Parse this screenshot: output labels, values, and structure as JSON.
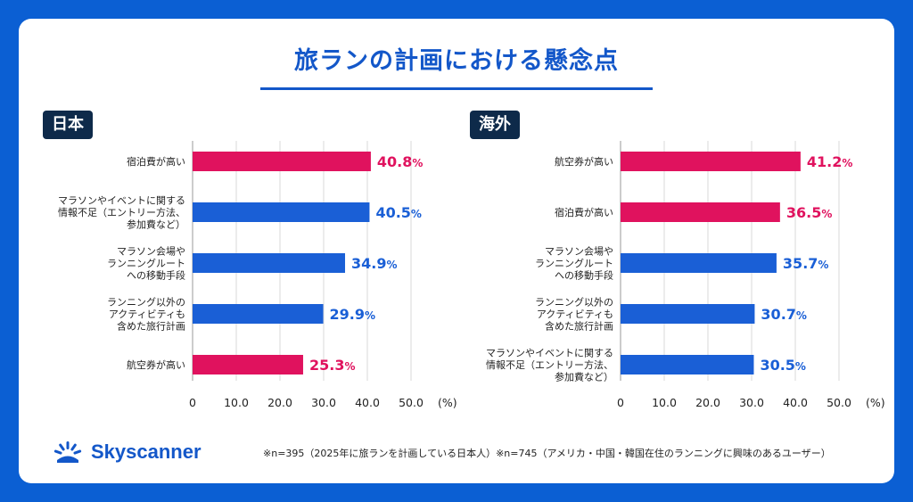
{
  "title": "旅ランの計画における懸念点",
  "colors": {
    "background": "#0b5fd3",
    "pink": "#e0125e",
    "blue": "#1a5fd6",
    "title": "#1357c9"
  },
  "chart_data": [
    {
      "type": "bar",
      "orientation": "horizontal",
      "region": "日本",
      "categories": [
        [
          "宿泊費が高い"
        ],
        [
          "マラソンやイベントに関する",
          "情報不足（エントリー方法、",
          "参加費など）"
        ],
        [
          "マラソン会場や",
          "ランニングルート",
          "への移動手段"
        ],
        [
          "ランニング以外の",
          "アクティビティも",
          "含めた旅行計画"
        ],
        [
          "航空券が高い"
        ]
      ],
      "values": [
        40.8,
        40.5,
        34.9,
        29.9,
        25.3
      ],
      "highlight": [
        true,
        false,
        false,
        false,
        true
      ],
      "xlim": [
        0,
        50
      ],
      "xticks": [
        "0",
        "10.0",
        "20.0",
        "30.0",
        "40.0",
        "50.0"
      ],
      "xunit": "(%)"
    },
    {
      "type": "bar",
      "orientation": "horizontal",
      "region": "海外",
      "categories": [
        [
          "航空券が高い"
        ],
        [
          "宿泊費が高い"
        ],
        [
          "マラソン会場や",
          "ランニングルート",
          "への移動手段"
        ],
        [
          "ランニング以外の",
          "アクティビティも",
          "含めた旅行計画"
        ],
        [
          "マラソンやイベントに関する",
          "情報不足（エントリー方法、",
          "参加費など）"
        ]
      ],
      "values": [
        41.2,
        36.5,
        35.7,
        30.7,
        30.5
      ],
      "highlight": [
        true,
        true,
        false,
        false,
        false
      ],
      "xlim": [
        0,
        50
      ],
      "xticks": [
        "0",
        "10.0",
        "20.0",
        "30.0",
        "40.0",
        "50.0"
      ],
      "xunit": "(%)"
    }
  ],
  "logo_text": "Skyscanner",
  "footnote": "※n=395（2025年に旅ランを計画している日本人）※n=745（アメリカ・中国・韓国在住のランニングに興味のあるユーザー）"
}
